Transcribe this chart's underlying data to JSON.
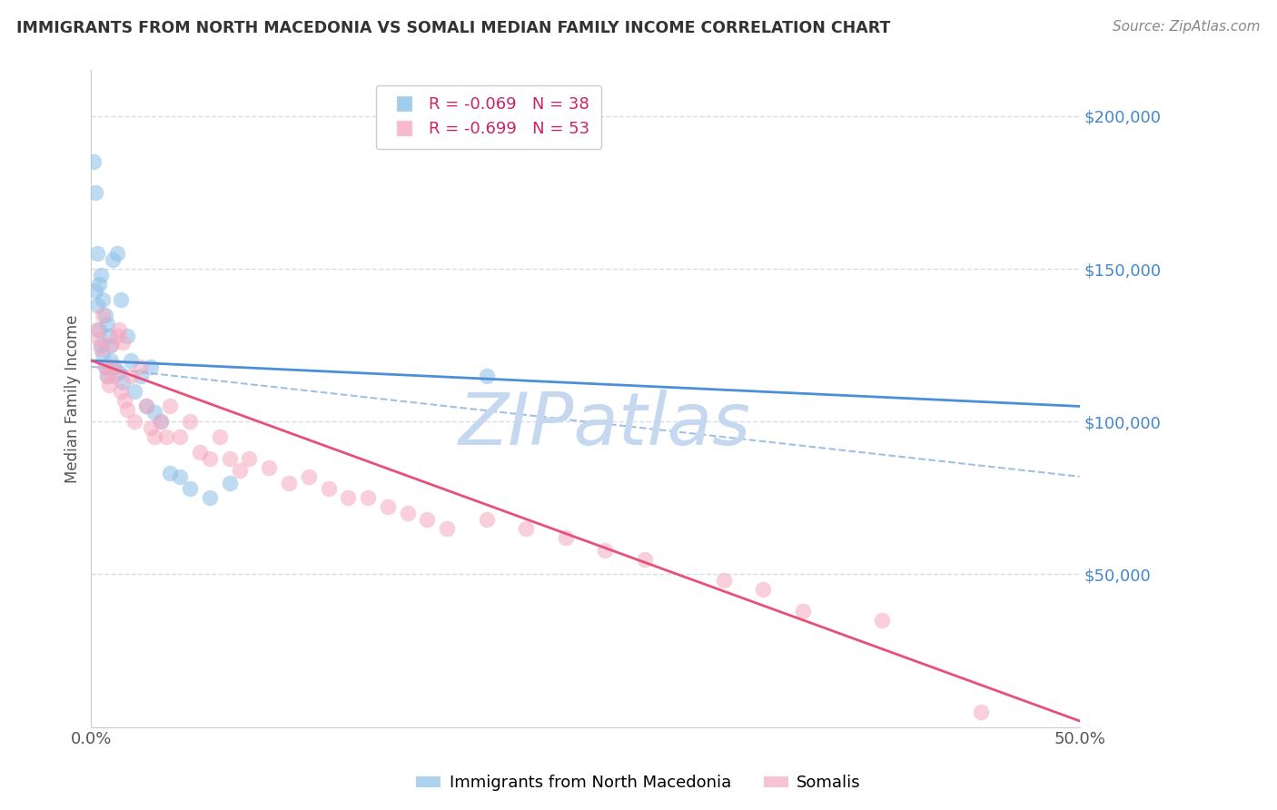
{
  "title": "IMMIGRANTS FROM NORTH MACEDONIA VS SOMALI MEDIAN FAMILY INCOME CORRELATION CHART",
  "source": "Source: ZipAtlas.com",
  "ylabel": "Median Family Income",
  "ylim": [
    0,
    215000
  ],
  "xlim": [
    0.0,
    0.5
  ],
  "watermark": "ZIPatlas",
  "watermark_color": "#c5d8f0",
  "blue_color": "#8bbfe8",
  "pink_color": "#f5a8c0",
  "blue_line_color": "#4a90d9",
  "pink_line_color": "#e8507a",
  "dashed_line_color": "#a0c0e8",
  "grid_color": "#d5dde8",
  "nm_x": [
    0.001,
    0.002,
    0.002,
    0.003,
    0.003,
    0.004,
    0.004,
    0.005,
    0.005,
    0.006,
    0.006,
    0.007,
    0.007,
    0.008,
    0.008,
    0.009,
    0.01,
    0.01,
    0.011,
    0.012,
    0.013,
    0.014,
    0.015,
    0.016,
    0.018,
    0.02,
    0.022,
    0.025,
    0.028,
    0.03,
    0.032,
    0.035,
    0.04,
    0.045,
    0.05,
    0.06,
    0.07,
    0.2
  ],
  "nm_y": [
    185000,
    143000,
    175000,
    155000,
    138000,
    145000,
    130000,
    148000,
    125000,
    140000,
    122000,
    135000,
    118000,
    132000,
    115000,
    128000,
    125000,
    120000,
    153000,
    118000,
    155000,
    116000,
    140000,
    113000,
    128000,
    120000,
    110000,
    115000,
    105000,
    118000,
    103000,
    100000,
    83000,
    82000,
    78000,
    75000,
    80000,
    115000
  ],
  "som_x": [
    0.003,
    0.004,
    0.005,
    0.006,
    0.007,
    0.008,
    0.009,
    0.01,
    0.011,
    0.012,
    0.013,
    0.014,
    0.015,
    0.016,
    0.017,
    0.018,
    0.02,
    0.022,
    0.025,
    0.028,
    0.03,
    0.032,
    0.035,
    0.038,
    0.04,
    0.045,
    0.05,
    0.055,
    0.06,
    0.065,
    0.07,
    0.075,
    0.08,
    0.09,
    0.1,
    0.11,
    0.12,
    0.13,
    0.14,
    0.15,
    0.16,
    0.17,
    0.18,
    0.2,
    0.22,
    0.24,
    0.26,
    0.28,
    0.32,
    0.34,
    0.36,
    0.4,
    0.45
  ],
  "som_y": [
    130000,
    127000,
    124000,
    135000,
    118000,
    115000,
    112000,
    125000,
    118000,
    115000,
    128000,
    130000,
    110000,
    126000,
    107000,
    104000,
    115000,
    100000,
    118000,
    105000,
    98000,
    95000,
    100000,
    95000,
    105000,
    95000,
    100000,
    90000,
    88000,
    95000,
    88000,
    84000,
    88000,
    85000,
    80000,
    82000,
    78000,
    75000,
    75000,
    72000,
    70000,
    68000,
    65000,
    68000,
    65000,
    62000,
    58000,
    55000,
    48000,
    45000,
    38000,
    35000,
    5000
  ],
  "blue_line_x0": 0.0,
  "blue_line_y0": 120000,
  "blue_line_x1": 0.5,
  "blue_line_y1": 105000,
  "pink_line_x0": 0.0,
  "pink_line_y0": 120000,
  "pink_line_x1": 0.5,
  "pink_line_y1": 2000,
  "dash_line_x0": 0.0,
  "dash_line_y0": 118000,
  "dash_line_x1": 0.5,
  "dash_line_y1": 82000
}
